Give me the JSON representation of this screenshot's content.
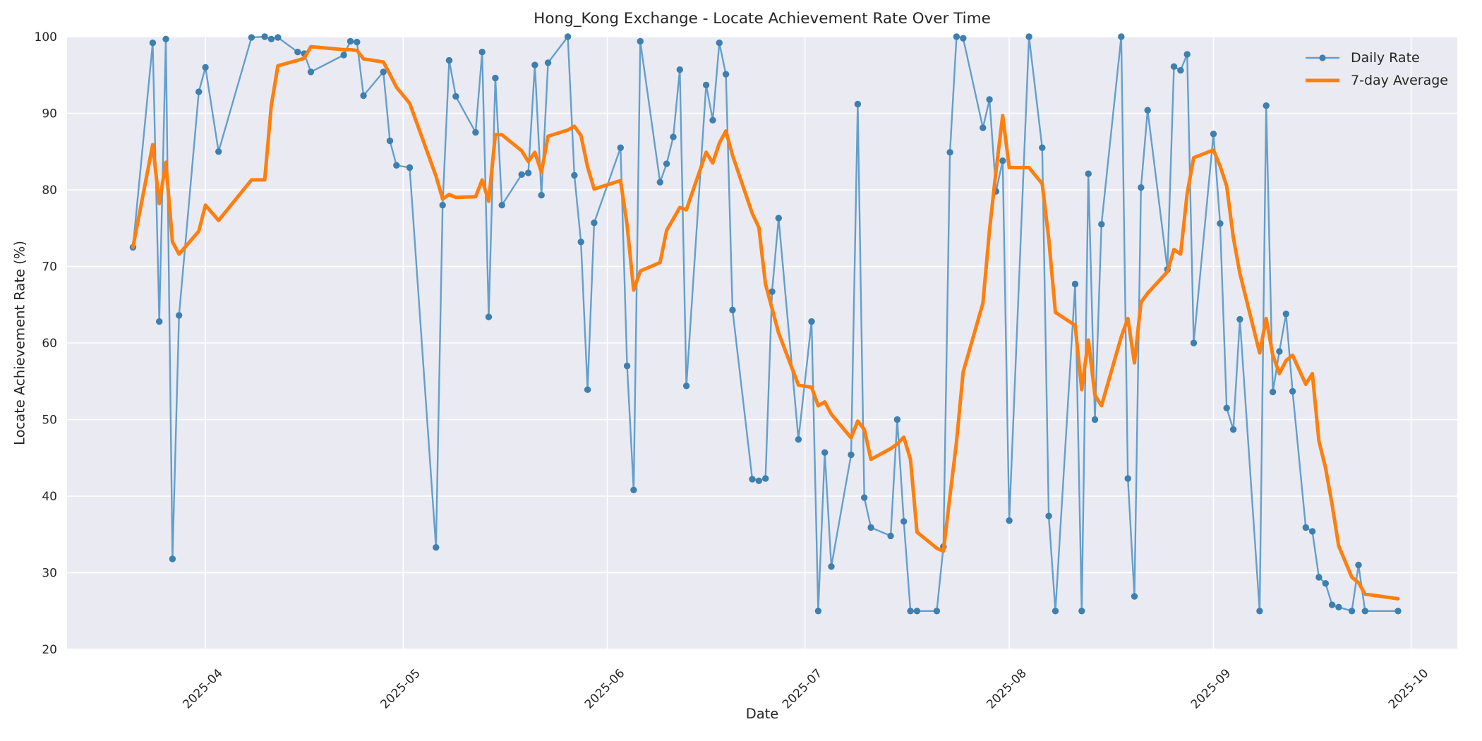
{
  "chart_data": {
    "type": "line",
    "title": "Hong_Kong Exchange - Locate Achievement Rate Over Time",
    "xlabel": "Date",
    "ylabel": "Locate Achievement Rate (%)",
    "ylim": [
      20,
      100
    ],
    "xlim": [
      "2025-03-11",
      "2025-10-08"
    ],
    "grid": true,
    "legend_position": "upper right",
    "plot_background": "#eaeaf2",
    "grid_color": "#ffffff",
    "text_color": "#262626",
    "y_ticks": [
      20,
      30,
      40,
      50,
      60,
      70,
      80,
      90,
      100
    ],
    "x_ticks": [
      {
        "label": "2025-04",
        "date": "2025-04-01"
      },
      {
        "label": "2025-05",
        "date": "2025-05-01"
      },
      {
        "label": "2025-06",
        "date": "2025-06-01"
      },
      {
        "label": "2025-07",
        "date": "2025-07-01"
      },
      {
        "label": "2025-08",
        "date": "2025-08-01"
      },
      {
        "label": "2025-09",
        "date": "2025-09-01"
      },
      {
        "label": "2025-10",
        "date": "2025-10-01"
      }
    ],
    "series": [
      {
        "name": "Daily Rate",
        "color": "#639fcc",
        "marker": "circle",
        "marker_color": "#3d7fae",
        "line_width": 2.4,
        "points": [
          [
            "2025-03-21",
            72.5
          ],
          [
            "2025-03-24",
            99.2
          ],
          [
            "2025-03-25",
            62.8
          ],
          [
            "2025-03-26",
            99.7
          ],
          [
            "2025-03-27",
            31.8
          ],
          [
            "2025-03-28",
            63.6
          ],
          [
            "2025-03-31",
            92.8
          ],
          [
            "2025-04-01",
            96.0
          ],
          [
            "2025-04-03",
            85.0
          ],
          [
            "2025-04-08",
            99.9
          ],
          [
            "2025-04-10",
            100.0
          ],
          [
            "2025-04-11",
            99.7
          ],
          [
            "2025-04-12",
            99.9
          ],
          [
            "2025-04-15",
            98.0
          ],
          [
            "2025-04-16",
            97.8
          ],
          [
            "2025-04-17",
            95.4
          ],
          [
            "2025-04-22",
            97.6
          ],
          [
            "2025-04-23",
            99.4
          ],
          [
            "2025-04-24",
            99.3
          ],
          [
            "2025-04-25",
            92.3
          ],
          [
            "2025-04-28",
            95.4
          ],
          [
            "2025-04-29",
            86.4
          ],
          [
            "2025-04-30",
            83.2
          ],
          [
            "2025-05-02",
            82.9
          ],
          [
            "2025-05-06",
            33.3
          ],
          [
            "2025-05-07",
            78.0
          ],
          [
            "2025-05-08",
            96.9
          ],
          [
            "2025-05-09",
            92.2
          ],
          [
            "2025-05-12",
            87.5
          ],
          [
            "2025-05-13",
            98.0
          ],
          [
            "2025-05-14",
            63.4
          ],
          [
            "2025-05-15",
            94.6
          ],
          [
            "2025-05-16",
            78.0
          ],
          [
            "2025-05-19",
            82.0
          ],
          [
            "2025-05-20",
            82.2
          ],
          [
            "2025-05-21",
            96.3
          ],
          [
            "2025-05-22",
            79.3
          ],
          [
            "2025-05-23",
            96.6
          ],
          [
            "2025-05-26",
            100.0
          ],
          [
            "2025-05-27",
            81.9
          ],
          [
            "2025-05-28",
            73.2
          ],
          [
            "2025-05-29",
            53.9
          ],
          [
            "2025-05-30",
            75.7
          ],
          [
            "2025-06-03",
            85.5
          ],
          [
            "2025-06-04",
            57.0
          ],
          [
            "2025-06-05",
            40.8
          ],
          [
            "2025-06-06",
            99.4
          ],
          [
            "2025-06-09",
            81.0
          ],
          [
            "2025-06-10",
            83.4
          ],
          [
            "2025-06-11",
            86.9
          ],
          [
            "2025-06-12",
            95.7
          ],
          [
            "2025-06-13",
            54.4
          ],
          [
            "2025-06-16",
            93.7
          ],
          [
            "2025-06-17",
            89.1
          ],
          [
            "2025-06-18",
            99.2
          ],
          [
            "2025-06-19",
            95.1
          ],
          [
            "2025-06-20",
            64.3
          ],
          [
            "2025-06-23",
            42.2
          ],
          [
            "2025-06-24",
            42.0
          ],
          [
            "2025-06-25",
            42.3
          ],
          [
            "2025-06-26",
            66.7
          ],
          [
            "2025-06-27",
            76.3
          ],
          [
            "2025-06-30",
            47.4
          ],
          [
            "2025-07-02",
            62.8
          ],
          [
            "2025-07-03",
            25.0
          ],
          [
            "2025-07-04",
            45.7
          ],
          [
            "2025-07-05",
            30.8
          ],
          [
            "2025-07-08",
            45.4
          ],
          [
            "2025-07-09",
            91.2
          ],
          [
            "2025-07-10",
            39.8
          ],
          [
            "2025-07-11",
            35.9
          ],
          [
            "2025-07-14",
            34.8
          ],
          [
            "2025-07-15",
            50.0
          ],
          [
            "2025-07-16",
            36.7
          ],
          [
            "2025-07-17",
            25.0
          ],
          [
            "2025-07-18",
            25.0
          ],
          [
            "2025-07-21",
            25.0
          ],
          [
            "2025-07-22",
            33.4
          ],
          [
            "2025-07-23",
            84.9
          ],
          [
            "2025-07-24",
            100.0
          ],
          [
            "2025-07-25",
            99.8
          ],
          [
            "2025-07-28",
            88.1
          ],
          [
            "2025-07-29",
            91.8
          ],
          [
            "2025-07-30",
            79.8
          ],
          [
            "2025-07-31",
            83.8
          ],
          [
            "2025-08-01",
            36.8
          ],
          [
            "2025-08-04",
            100.0
          ],
          [
            "2025-08-06",
            85.5
          ],
          [
            "2025-08-07",
            37.4
          ],
          [
            "2025-08-08",
            25.0
          ],
          [
            "2025-08-11",
            67.7
          ],
          [
            "2025-08-12",
            25.0
          ],
          [
            "2025-08-13",
            82.1
          ],
          [
            "2025-08-14",
            50.0
          ],
          [
            "2025-08-15",
            75.5
          ],
          [
            "2025-08-18",
            100.0
          ],
          [
            "2025-08-19",
            42.3
          ],
          [
            "2025-08-20",
            26.9
          ],
          [
            "2025-08-21",
            80.3
          ],
          [
            "2025-08-22",
            90.4
          ],
          [
            "2025-08-25",
            69.6
          ],
          [
            "2025-08-26",
            96.1
          ],
          [
            "2025-08-27",
            95.6
          ],
          [
            "2025-08-28",
            97.7
          ],
          [
            "2025-08-29",
            60.0
          ],
          [
            "2025-09-01",
            87.3
          ],
          [
            "2025-09-02",
            75.6
          ],
          [
            "2025-09-03",
            51.5
          ],
          [
            "2025-09-04",
            48.7
          ],
          [
            "2025-09-05",
            63.1
          ],
          [
            "2025-09-08",
            25.0
          ],
          [
            "2025-09-09",
            91.0
          ],
          [
            "2025-09-10",
            53.6
          ],
          [
            "2025-09-11",
            58.9
          ],
          [
            "2025-09-12",
            63.8
          ],
          [
            "2025-09-13",
            53.7
          ],
          [
            "2025-09-15",
            35.9
          ],
          [
            "2025-09-16",
            35.4
          ],
          [
            "2025-09-17",
            29.4
          ],
          [
            "2025-09-18",
            28.6
          ],
          [
            "2025-09-19",
            25.8
          ],
          [
            "2025-09-20",
            25.5
          ],
          [
            "2025-09-22",
            25.0
          ],
          [
            "2025-09-23",
            31.0
          ],
          [
            "2025-09-24",
            25.0
          ],
          [
            "2025-09-29",
            25.0
          ]
        ]
      },
      {
        "name": "7-day Average",
        "color": "#ff7f0e",
        "marker": "none",
        "line_width": 5,
        "points": [
          [
            "2025-03-21",
            72.5
          ],
          [
            "2025-03-24",
            85.9
          ],
          [
            "2025-03-25",
            78.2
          ],
          [
            "2025-03-26",
            83.6
          ],
          [
            "2025-03-27",
            73.2
          ],
          [
            "2025-03-28",
            71.6
          ],
          [
            "2025-03-31",
            74.6
          ],
          [
            "2025-04-01",
            78.0
          ],
          [
            "2025-04-03",
            76.0
          ],
          [
            "2025-04-08",
            81.3
          ],
          [
            "2025-04-10",
            81.3
          ],
          [
            "2025-04-11",
            91.0
          ],
          [
            "2025-04-12",
            96.2
          ],
          [
            "2025-04-15",
            96.9
          ],
          [
            "2025-04-16",
            97.2
          ],
          [
            "2025-04-17",
            98.7
          ],
          [
            "2025-04-22",
            98.3
          ],
          [
            "2025-04-23",
            98.3
          ],
          [
            "2025-04-24",
            98.2
          ],
          [
            "2025-04-25",
            97.1
          ],
          [
            "2025-04-28",
            96.7
          ],
          [
            "2025-04-29",
            95.1
          ],
          [
            "2025-04-30",
            93.4
          ],
          [
            "2025-05-02",
            91.3
          ],
          [
            "2025-05-06",
            81.8
          ],
          [
            "2025-05-07",
            78.8
          ],
          [
            "2025-05-08",
            79.4
          ],
          [
            "2025-05-09",
            79.0
          ],
          [
            "2025-05-12",
            79.1
          ],
          [
            "2025-05-13",
            81.3
          ],
          [
            "2025-05-14",
            78.5
          ],
          [
            "2025-05-15",
            87.2
          ],
          [
            "2025-05-16",
            87.2
          ],
          [
            "2025-05-19",
            85.1
          ],
          [
            "2025-05-20",
            83.7
          ],
          [
            "2025-05-21",
            84.9
          ],
          [
            "2025-05-22",
            82.3
          ],
          [
            "2025-05-23",
            87.0
          ],
          [
            "2025-05-26",
            87.8
          ],
          [
            "2025-05-27",
            88.3
          ],
          [
            "2025-05-28",
            87.1
          ],
          [
            "2025-05-29",
            83.0
          ],
          [
            "2025-05-30",
            80.1
          ],
          [
            "2025-06-03",
            81.2
          ],
          [
            "2025-06-04",
            75.4
          ],
          [
            "2025-06-05",
            66.9
          ],
          [
            "2025-06-06",
            69.4
          ],
          [
            "2025-06-09",
            70.5
          ],
          [
            "2025-06-10",
            74.7
          ],
          [
            "2025-06-11",
            76.2
          ],
          [
            "2025-06-12",
            77.7
          ],
          [
            "2025-06-13",
            77.4
          ],
          [
            "2025-06-16",
            84.9
          ],
          [
            "2025-06-17",
            83.5
          ],
          [
            "2025-06-18",
            86.1
          ],
          [
            "2025-06-19",
            87.7
          ],
          [
            "2025-06-20",
            84.5
          ],
          [
            "2025-06-23",
            76.9
          ],
          [
            "2025-06-24",
            75.1
          ],
          [
            "2025-06-25",
            67.7
          ],
          [
            "2025-06-26",
            64.5
          ],
          [
            "2025-06-27",
            61.3
          ],
          [
            "2025-06-30",
            54.5
          ],
          [
            "2025-07-02",
            54.2
          ],
          [
            "2025-07-03",
            51.8
          ],
          [
            "2025-07-04",
            52.3
          ],
          [
            "2025-07-05",
            50.7
          ],
          [
            "2025-07-08",
            47.6
          ],
          [
            "2025-07-09",
            49.8
          ],
          [
            "2025-07-10",
            48.7
          ],
          [
            "2025-07-11",
            44.8
          ],
          [
            "2025-07-14",
            46.2
          ],
          [
            "2025-07-15",
            46.8
          ],
          [
            "2025-07-16",
            47.7
          ],
          [
            "2025-07-17",
            44.8
          ],
          [
            "2025-07-18",
            35.3
          ],
          [
            "2025-07-21",
            33.2
          ],
          [
            "2025-07-22",
            32.8
          ],
          [
            "2025-07-23",
            40.0
          ],
          [
            "2025-07-24",
            47.1
          ],
          [
            "2025-07-25",
            56.2
          ],
          [
            "2025-07-28",
            65.2
          ],
          [
            "2025-07-29",
            74.7
          ],
          [
            "2025-07-30",
            82.5
          ],
          [
            "2025-07-31",
            89.7
          ],
          [
            "2025-08-01",
            82.9
          ],
          [
            "2025-08-04",
            82.9
          ],
          [
            "2025-08-06",
            80.8
          ],
          [
            "2025-08-07",
            73.6
          ],
          [
            "2025-08-08",
            64.0
          ],
          [
            "2025-08-11",
            62.3
          ],
          [
            "2025-08-12",
            53.9
          ],
          [
            "2025-08-13",
            60.4
          ],
          [
            "2025-08-14",
            53.2
          ],
          [
            "2025-08-15",
            51.8
          ],
          [
            "2025-08-18",
            60.8
          ],
          [
            "2025-08-19",
            63.2
          ],
          [
            "2025-08-20",
            57.4
          ],
          [
            "2025-08-21",
            65.3
          ],
          [
            "2025-08-22",
            66.5
          ],
          [
            "2025-08-25",
            69.3
          ],
          [
            "2025-08-26",
            72.2
          ],
          [
            "2025-08-27",
            71.6
          ],
          [
            "2025-08-28",
            79.5
          ],
          [
            "2025-08-29",
            84.2
          ],
          [
            "2025-09-01",
            85.2
          ],
          [
            "2025-09-02",
            83.1
          ],
          [
            "2025-09-03",
            80.5
          ],
          [
            "2025-09-04",
            73.8
          ],
          [
            "2025-09-05",
            69.1
          ],
          [
            "2025-09-08",
            58.7
          ],
          [
            "2025-09-09",
            63.2
          ],
          [
            "2025-09-10",
            58.4
          ],
          [
            "2025-09-11",
            56.0
          ],
          [
            "2025-09-12",
            57.7
          ],
          [
            "2025-09-13",
            58.4
          ],
          [
            "2025-09-15",
            54.6
          ],
          [
            "2025-09-16",
            56.0
          ],
          [
            "2025-09-17",
            47.2
          ],
          [
            "2025-09-18",
            43.7
          ],
          [
            "2025-09-19",
            38.9
          ],
          [
            "2025-09-20",
            33.5
          ],
          [
            "2025-09-22",
            29.4
          ],
          [
            "2025-09-23",
            28.7
          ],
          [
            "2025-09-24",
            27.2
          ],
          [
            "2025-09-29",
            26.6
          ]
        ]
      }
    ]
  }
}
